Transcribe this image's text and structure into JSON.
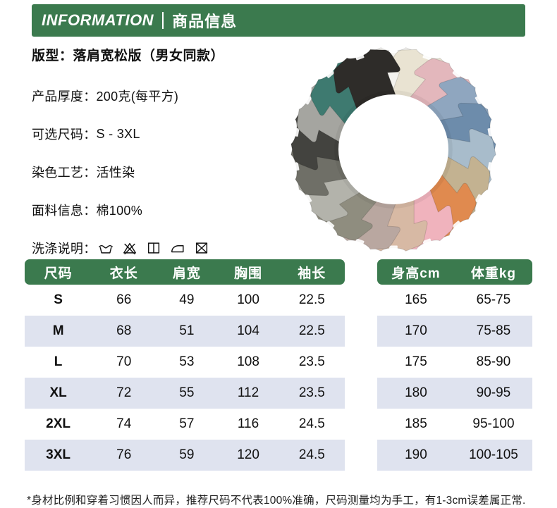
{
  "colors": {
    "green": "#3b7a4e",
    "row_alt": "#dfe3ef",
    "ink": "#111111"
  },
  "header": {
    "title_en": "INFORMATION",
    "title_zh": "商品信息"
  },
  "info": {
    "fit_label": "版型：",
    "fit_value": "落肩宽松版（男女同款）",
    "rows": [
      {
        "label": "产品厚度：",
        "value": "200克(每平方)"
      },
      {
        "label": "可选尺码：",
        "value": "S - 3XL"
      },
      {
        "label": "染色工艺：",
        "value": "活性染"
      },
      {
        "label": "面料信息：",
        "value": "棉100%"
      },
      {
        "label": "洗涤说明：",
        "value": ""
      }
    ],
    "care_icons": [
      "hand-wash",
      "no-bleach",
      "line-dry",
      "iron",
      "no-tumble-dry"
    ]
  },
  "shirt_wheel": {
    "colors": [
      "#f4f3ef",
      "#e9e3d2",
      "#e3b7bc",
      "#8fa6bf",
      "#6d8cab",
      "#a8bccb",
      "#c3b291",
      "#e08a4f",
      "#f0b3bd",
      "#d7b9a4",
      "#b9a7a0",
      "#8f8d7f",
      "#b3b3ab",
      "#6f6f67",
      "#43433f",
      "#a5a5a0",
      "#3e7a70",
      "#2e2c29"
    ]
  },
  "size_table": {
    "headers": [
      "尺码",
      "衣长",
      "肩宽",
      "胸围",
      "袖长"
    ],
    "rows": [
      [
        "S",
        "66",
        "49",
        "100",
        "22.5"
      ],
      [
        "M",
        "68",
        "51",
        "104",
        "22.5"
      ],
      [
        "L",
        "70",
        "53",
        "108",
        "23.5"
      ],
      [
        "XL",
        "72",
        "55",
        "112",
        "23.5"
      ],
      [
        "2XL",
        "74",
        "57",
        "116",
        "24.5"
      ],
      [
        "3XL",
        "76",
        "59",
        "120",
        "24.5"
      ]
    ]
  },
  "hw_table": {
    "headers": [
      "身高cm",
      "体重kg"
    ],
    "rows": [
      [
        "165",
        "65-75"
      ],
      [
        "170",
        "75-85"
      ],
      [
        "175",
        "85-90"
      ],
      [
        "180",
        "90-95"
      ],
      [
        "185",
        "95-100"
      ],
      [
        "190",
        "100-105"
      ]
    ]
  },
  "footnote": "*身材比例和穿着习惯因人而异，推荐尺码不代表100%准确，尺码测量均为手工，有1-3cm误差属正常."
}
